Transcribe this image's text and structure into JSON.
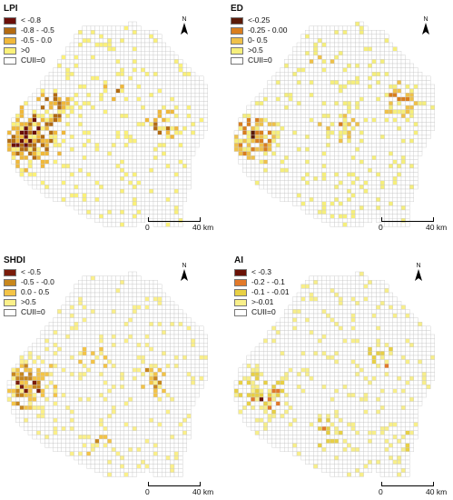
{
  "palettes": {
    "LPI": [
      "#6b0f0a",
      "#b36b12",
      "#f0b83a",
      "#fbf17a"
    ],
    "ED": [
      "#5a1a08",
      "#d97e1e",
      "#efc14a",
      "#f6ef7c"
    ],
    "SHDI": [
      "#7a1c0b",
      "#c8871d",
      "#f4c447",
      "#fbf08a"
    ],
    "AI": [
      "#6a1207",
      "#e2792a",
      "#e8d045",
      "#f8ef8a"
    ],
    "empty": "#ffffff",
    "grid": "#c8c8c8"
  },
  "panels": [
    {
      "id": "LPI",
      "title": "LPI",
      "legend": [
        "< -0.8",
        "-0.8 - -0.5",
        "-0.5 - 0.0",
        ">0",
        "CUII=0"
      ],
      "north": "N",
      "scale": {
        "zero": "0",
        "end": "40 km"
      }
    },
    {
      "id": "ED",
      "title": "ED",
      "legend": [
        "<-0.25",
        "-0.25 - 0.00",
        "0- 0.5",
        ">0.5",
        "CUII=0"
      ],
      "north": "N",
      "scale": {
        "zero": "0",
        "end": "40 km"
      }
    },
    {
      "id": "SHDI",
      "title": "SHDI",
      "legend": [
        "< -0.5",
        "-0.5 - -0.0",
        "0.0 - 0.5",
        ">0.5",
        "CUII=0"
      ],
      "north": "N",
      "scale": {
        "zero": "0",
        "end": "40 km"
      }
    },
    {
      "id": "AI",
      "title": "AI",
      "legend": [
        "< -0.3",
        "-0.2 - -0.1",
        "-0.1 - -0.01",
        ">-0.01",
        "CUII=0"
      ],
      "north": "N",
      "scale": {
        "zero": "0",
        "end": "40 km"
      }
    }
  ]
}
